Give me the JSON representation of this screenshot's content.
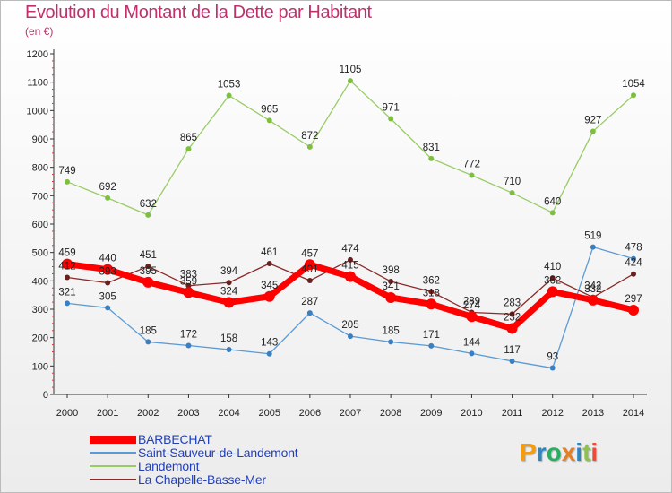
{
  "chart_data": {
    "type": "line",
    "title": "Evolution du Montant de la Dette par Habitant",
    "subtitle": "(en €)",
    "xlabel": "",
    "ylabel": "",
    "ylim": [
      0,
      1200
    ],
    "y_ticks": [
      0,
      100,
      200,
      300,
      400,
      500,
      600,
      700,
      800,
      900,
      1000,
      1100,
      1200
    ],
    "categories": [
      "2000",
      "2001",
      "2002",
      "2003",
      "2004",
      "2005",
      "2006",
      "2007",
      "2008",
      "2009",
      "2010",
      "2011",
      "2012",
      "2013",
      "2014"
    ],
    "series": [
      {
        "name": "BARBECHAT",
        "color": "#ff0000",
        "values": [
          459,
          440,
          395,
          359,
          324,
          345,
          457,
          415,
          341,
          318,
          274,
          232,
          362,
          332,
          297
        ]
      },
      {
        "name": "Saint-Sauveur-de-Landemont",
        "color": "#5b9bd5",
        "values": [
          321,
          305,
          185,
          172,
          158,
          143,
          287,
          205,
          185,
          171,
          144,
          117,
          93,
          519,
          478
        ]
      },
      {
        "name": "Landemont",
        "color": "#99cc66",
        "values": [
          749,
          692,
          632,
          865,
          1053,
          965,
          872,
          1105,
          971,
          831,
          772,
          710,
          640,
          927,
          1054
        ]
      },
      {
        "name": "La Chapelle-Basse-Mer",
        "color": "#8b2a2a",
        "values": [
          412,
          393,
          451,
          383,
          394,
          461,
          401,
          474,
          398,
          362,
          289,
          283,
          410,
          342,
          424
        ]
      }
    ],
    "legend_position": "bottom-left",
    "grid": false
  },
  "logo": {
    "letters": [
      "P",
      "r",
      "o",
      "x",
      "i",
      "t",
      "i"
    ],
    "colors": [
      "#f39c12",
      "#2e86c1",
      "#27ae60",
      "#e67e22",
      "#2e86c1",
      "#8bc34a",
      "#e74c3c"
    ]
  }
}
